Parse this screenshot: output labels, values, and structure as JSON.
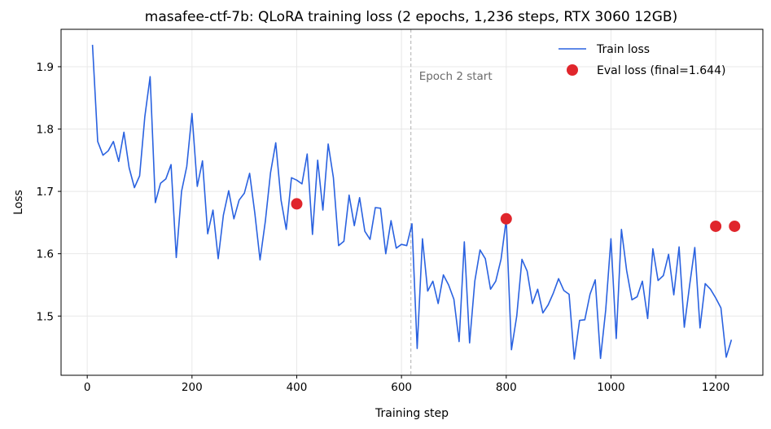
{
  "chart_data": {
    "type": "line",
    "title": "masafee-ctf-7b: QLoRA training loss (2 epochs, 1,236 steps, RTX 3060 12GB)",
    "xlabel": "Training step",
    "ylabel": "Loss",
    "xlim": [
      -50,
      1290
    ],
    "ylim": [
      1.405,
      1.96
    ],
    "xticks": [
      0,
      200,
      400,
      600,
      800,
      1000,
      1200
    ],
    "yticks": [
      1.5,
      1.6,
      1.7,
      1.8,
      1.9
    ],
    "ytick_labels": [
      "1.5",
      "1.6",
      "1.7",
      "1.8",
      "1.9"
    ],
    "grid": true,
    "legend_position": "top-right",
    "series": [
      {
        "name": "Train loss",
        "kind": "line",
        "color": "#2a62e0",
        "x": [
          10,
          20,
          30,
          40,
          50,
          60,
          70,
          80,
          90,
          100,
          110,
          120,
          130,
          140,
          150,
          160,
          170,
          180,
          190,
          200,
          210,
          220,
          230,
          240,
          250,
          260,
          270,
          280,
          290,
          300,
          310,
          320,
          330,
          340,
          350,
          360,
          370,
          380,
          390,
          400,
          410,
          420,
          430,
          440,
          450,
          460,
          470,
          480,
          490,
          500,
          510,
          520,
          530,
          540,
          550,
          560,
          570,
          580,
          590,
          600,
          610,
          620,
          630,
          640,
          650,
          660,
          670,
          680,
          690,
          700,
          710,
          720,
          730,
          740,
          750,
          760,
          770,
          780,
          790,
          800,
          810,
          820,
          830,
          840,
          850,
          860,
          870,
          880,
          890,
          900,
          910,
          920,
          930,
          940,
          950,
          960,
          970,
          980,
          990,
          1000,
          1010,
          1020,
          1030,
          1040,
          1050,
          1060,
          1070,
          1080,
          1090,
          1100,
          1110,
          1120,
          1130,
          1140,
          1150,
          1160,
          1170,
          1180,
          1190,
          1200,
          1210,
          1220,
          1230
        ],
        "y": [
          1.935,
          1.78,
          1.758,
          1.765,
          1.78,
          1.748,
          1.795,
          1.738,
          1.706,
          1.725,
          1.82,
          1.884,
          1.682,
          1.713,
          1.72,
          1.743,
          1.594,
          1.7,
          1.74,
          1.825,
          1.708,
          1.749,
          1.632,
          1.67,
          1.592,
          1.662,
          1.701,
          1.656,
          1.686,
          1.697,
          1.729,
          1.665,
          1.59,
          1.652,
          1.73,
          1.778,
          1.686,
          1.639,
          1.722,
          1.718,
          1.712,
          1.76,
          1.631,
          1.75,
          1.67,
          1.776,
          1.722,
          1.613,
          1.62,
          1.694,
          1.645,
          1.69,
          1.636,
          1.623,
          1.674,
          1.673,
          1.6,
          1.653,
          1.609,
          1.615,
          1.613,
          1.648,
          1.448,
          1.624,
          1.54,
          1.556,
          1.52,
          1.566,
          1.55,
          1.527,
          1.459,
          1.619,
          1.457,
          1.556,
          1.606,
          1.592,
          1.543,
          1.556,
          1.591,
          1.655,
          1.446,
          1.5,
          1.591,
          1.572,
          1.52,
          1.543,
          1.505,
          1.518,
          1.537,
          1.56,
          1.541,
          1.535,
          1.431,
          1.493,
          1.494,
          1.535,
          1.558,
          1.432,
          1.51,
          1.624,
          1.464,
          1.639,
          1.573,
          1.526,
          1.531,
          1.556,
          1.496,
          1.608,
          1.557,
          1.565,
          1.599,
          1.534,
          1.611,
          1.482,
          1.548,
          1.61,
          1.481,
          1.552,
          1.543,
          1.529,
          1.513,
          1.434,
          1.462
        ]
      },
      {
        "name": "Eval loss (final=1.644)",
        "kind": "scatter",
        "color": "#e0262c",
        "x": [
          400,
          800,
          1200,
          1236
        ],
        "y": [
          1.68,
          1.656,
          1.644,
          1.644
        ]
      }
    ],
    "annotations": [
      {
        "text": "Epoch 2 start",
        "x": 618,
        "style": "dashed-vertical-line",
        "color": "#b0b0b0"
      }
    ]
  }
}
